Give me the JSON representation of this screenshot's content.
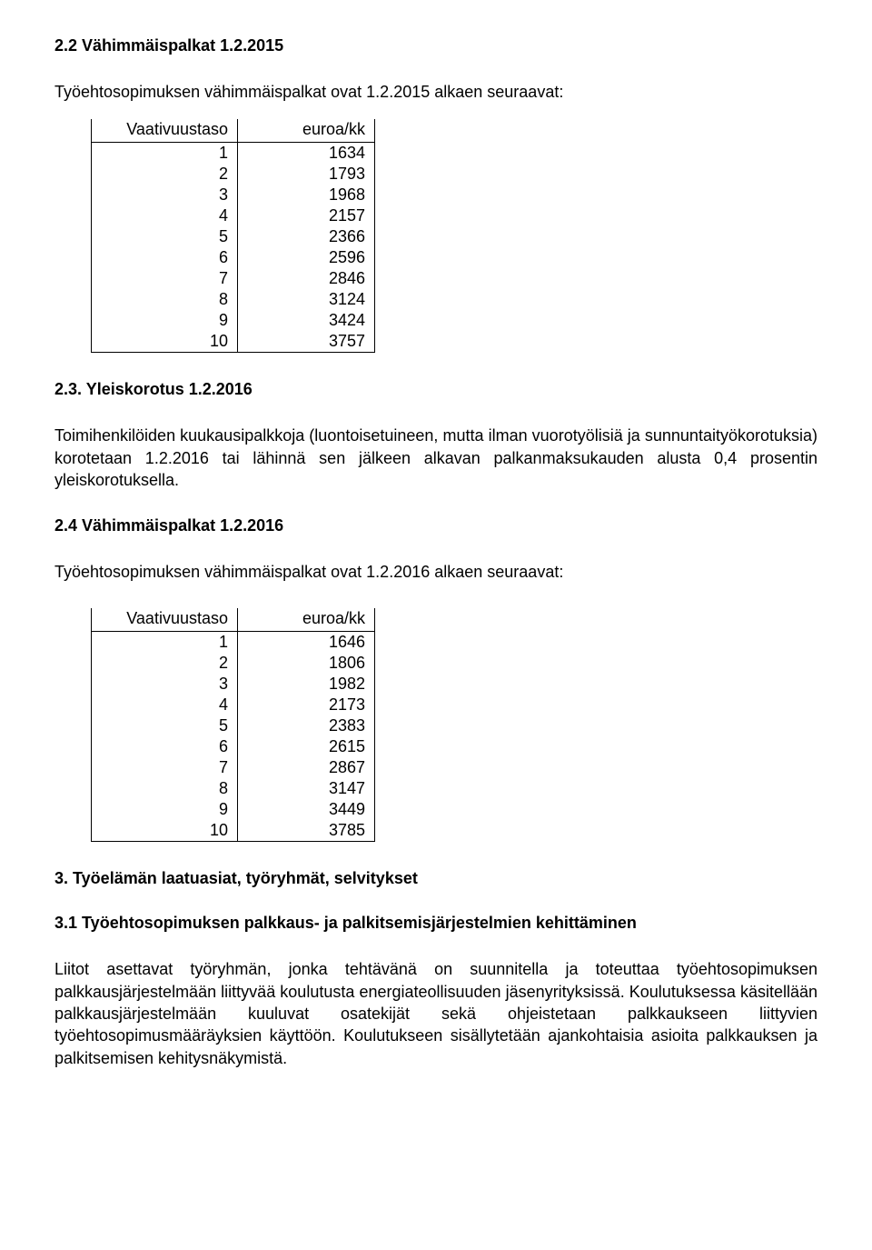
{
  "section22": {
    "heading": "2.2 Vähimmäispalkat 1.2.2015",
    "intro": "Työehtosopimuksen vähimmäispalkat ovat 1.2.2015 alkaen seuraavat:",
    "table": {
      "col1": "Vaativuustaso",
      "col2": "euroa/kk",
      "rows": [
        {
          "level": "1",
          "euro": "1634"
        },
        {
          "level": "2",
          "euro": "1793"
        },
        {
          "level": "3",
          "euro": "1968"
        },
        {
          "level": "4",
          "euro": "2157"
        },
        {
          "level": "5",
          "euro": "2366"
        },
        {
          "level": "6",
          "euro": "2596"
        },
        {
          "level": "7",
          "euro": "2846"
        },
        {
          "level": "8",
          "euro": "3124"
        },
        {
          "level": "9",
          "euro": "3424"
        },
        {
          "level": "10",
          "euro": "3757"
        }
      ]
    }
  },
  "section23": {
    "heading": "2.3. Yleiskorotus 1.2.2016",
    "body": "Toimihenkilöiden kuukausipalkkoja (luontoisetuineen, mutta ilman vuorotyölisiä ja sunnuntaityökorotuksia) korotetaan 1.2.2016 tai lähinnä sen jälkeen alkavan palkanmaksukauden alusta 0,4 prosentin yleiskorotuksella."
  },
  "section24": {
    "heading": "2.4 Vähimmäispalkat 1.2.2016",
    "intro": "Työehtosopimuksen vähimmäispalkat ovat 1.2.2016 alkaen seuraavat:",
    "table": {
      "col1": "Vaativuustaso",
      "col2": "euroa/kk",
      "rows": [
        {
          "level": "1",
          "euro": "1646"
        },
        {
          "level": "2",
          "euro": "1806"
        },
        {
          "level": "3",
          "euro": "1982"
        },
        {
          "level": "4",
          "euro": "2173"
        },
        {
          "level": "5",
          "euro": "2383"
        },
        {
          "level": "6",
          "euro": "2615"
        },
        {
          "level": "7",
          "euro": "2867"
        },
        {
          "level": "8",
          "euro": "3147"
        },
        {
          "level": "9",
          "euro": "3449"
        },
        {
          "level": "10",
          "euro": "3785"
        }
      ]
    }
  },
  "section3": {
    "heading": "3. Työelämän laatuasiat, työryhmät, selvitykset"
  },
  "section31": {
    "heading": "3.1 Työehtosopimuksen palkkaus- ja palkitsemisjärjestelmien kehittäminen",
    "body": "Liitot asettavat työryhmän, jonka tehtävänä on suunnitella ja toteuttaa työehtosopimuksen palkkausjärjestelmään liittyvää koulutusta energiateollisuuden jäsenyrityksissä. Koulutuksessa käsitellään palkkausjärjestelmään kuuluvat osatekijät sekä ohjeistetaan palkkaukseen liittyvien työehtosopimusmääräyksien käyttöön. Koulutukseen sisällytetään ajankohtaisia asioita palkkauksen ja palkitsemisen kehitysnäkymistä."
  }
}
